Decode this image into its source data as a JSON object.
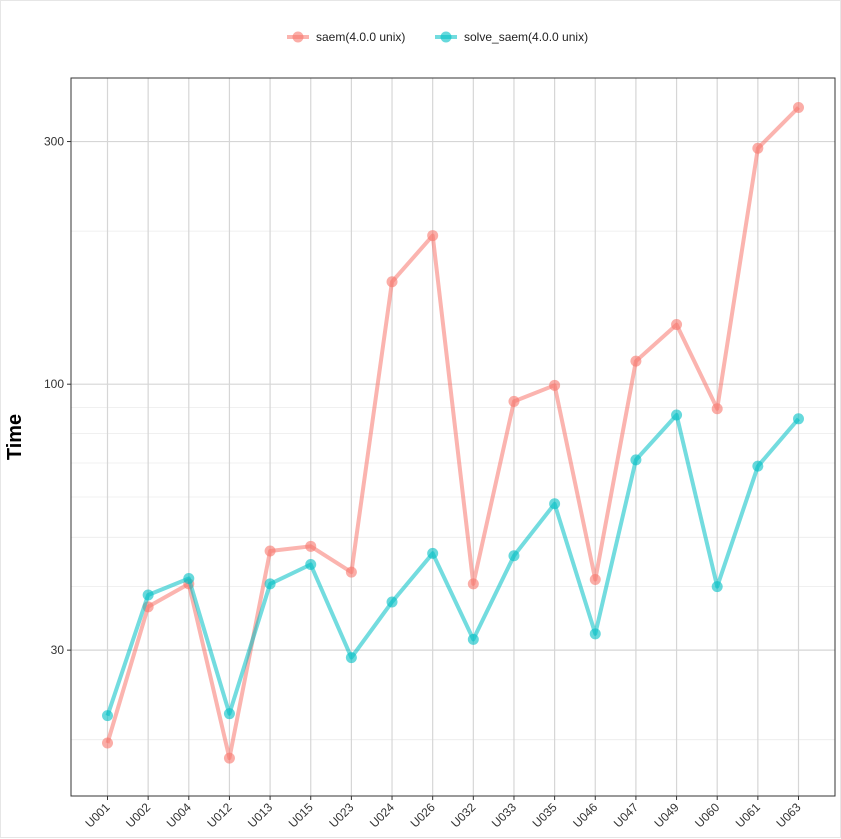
{
  "chart_data": {
    "type": "line",
    "title": "",
    "xlabel": "",
    "ylabel": "Time",
    "y_scale": "log",
    "ylim": [
      15.5,
      400
    ],
    "y_ticks": [
      30,
      100,
      300
    ],
    "y_tick_labels": [
      "30",
      "100",
      "300"
    ],
    "grid": true,
    "legend_position": "top",
    "categories": [
      "U001",
      "U002",
      "U004",
      "U012",
      "U013",
      "U015",
      "U023",
      "U024",
      "U026",
      "U032",
      "U033",
      "U035",
      "U046",
      "U047",
      "U049",
      "U060",
      "U061",
      "U063"
    ],
    "series": [
      {
        "name": "saem(4.0.0 unix)",
        "color": "#F8766D",
        "values": [
          19.7,
          36.5,
          40.5,
          18.4,
          47.0,
          48.0,
          42.7,
          159,
          196,
          40.5,
          92.5,
          99.5,
          41.3,
          111,
          131,
          89.5,
          291,
          350
        ]
      },
      {
        "name": "solve_saem(4.0.0 unix)",
        "color": "#00BFC4",
        "values": [
          22.3,
          38.5,
          41.5,
          22.5,
          40.5,
          44.2,
          29.0,
          37.3,
          46.5,
          31.5,
          46.0,
          58.2,
          32.3,
          71.0,
          87.0,
          40.0,
          69.0,
          85.5
        ]
      }
    ]
  }
}
